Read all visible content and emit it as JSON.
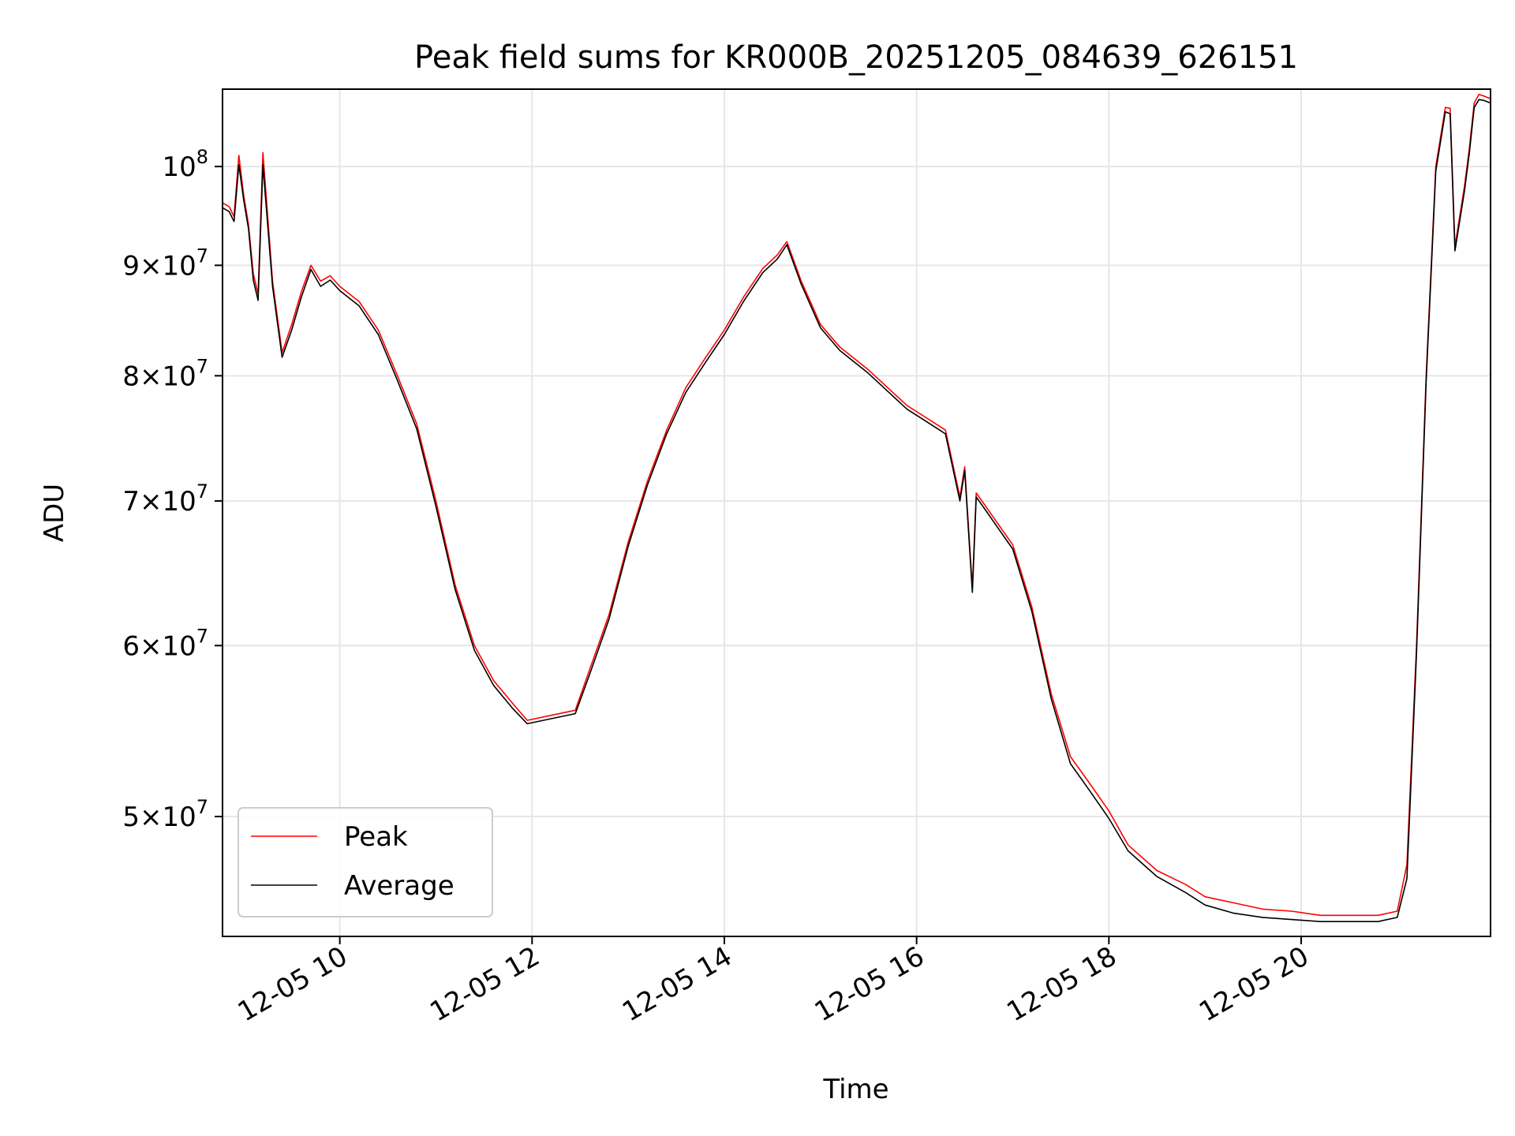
{
  "chart_data": {
    "type": "line",
    "title": "Peak field sums for KR000B_20251205_084639_626151",
    "xlabel": "Time",
    "ylabel": "ADU",
    "yscale": "log",
    "grid": true,
    "legend_position": "lower-left",
    "x_range_hours": [
      8.78,
      21.97
    ],
    "y_range": [
      44000000,
      108600000
    ],
    "x_ticks": [
      {
        "value": 10,
        "label": "12-05 10"
      },
      {
        "value": 12,
        "label": "12-05 12"
      },
      {
        "value": 14,
        "label": "12-05 14"
      },
      {
        "value": 16,
        "label": "12-05 16"
      },
      {
        "value": 18,
        "label": "12-05 18"
      },
      {
        "value": 20,
        "label": "12-05 20"
      }
    ],
    "y_ticks": [
      {
        "value": 50000000,
        "mantissa": "5",
        "exponent": "7"
      },
      {
        "value": 60000000,
        "mantissa": "6",
        "exponent": "7"
      },
      {
        "value": 70000000,
        "mantissa": "7",
        "exponent": "7"
      },
      {
        "value": 80000000,
        "mantissa": "8",
        "exponent": "7"
      },
      {
        "value": 90000000,
        "mantissa": "9",
        "exponent": "7"
      },
      {
        "value": 100000000,
        "mantissa": "",
        "exponent": "8"
      }
    ],
    "series": [
      {
        "name": "Peak",
        "color": "#ff0000",
        "x": [
          8.78,
          8.85,
          8.9,
          8.95,
          9.0,
          9.05,
          9.1,
          9.15,
          9.2,
          9.3,
          9.4,
          9.5,
          9.6,
          9.7,
          9.8,
          9.9,
          10.0,
          10.2,
          10.4,
          10.6,
          10.8,
          11.0,
          11.2,
          11.4,
          11.6,
          11.8,
          11.95,
          12.2,
          12.45,
          12.6,
          12.8,
          13.0,
          13.2,
          13.4,
          13.6,
          13.8,
          14.0,
          14.2,
          14.4,
          14.55,
          14.65,
          14.8,
          15.0,
          15.2,
          15.5,
          15.9,
          16.1,
          16.3,
          16.45,
          16.5,
          16.58,
          16.62,
          16.7,
          17.0,
          17.2,
          17.4,
          17.6,
          17.8,
          18.0,
          18.2,
          18.5,
          18.8,
          19.0,
          19.3,
          19.6,
          19.9,
          20.2,
          20.5,
          20.8,
          21.0,
          21.1,
          21.2,
          21.3,
          21.4,
          21.5,
          21.55,
          21.6,
          21.7,
          21.75,
          21.8,
          21.85,
          21.9,
          21.97
        ],
        "y": [
          96200000,
          95800000,
          94800000,
          101200000,
          97000000,
          94000000,
          89200000,
          87300000,
          101500000,
          88500000,
          82000000,
          84500000,
          87500000,
          90000000,
          88500000,
          89000000,
          88000000,
          86600000,
          84000000,
          80000000,
          76000000,
          70000000,
          64000000,
          60000000,
          57800000,
          56400000,
          55400000,
          55700000,
          56000000,
          58500000,
          62000000,
          67000000,
          71500000,
          75500000,
          79000000,
          81500000,
          84000000,
          87000000,
          89700000,
          91000000,
          92300000,
          88500000,
          84500000,
          82500000,
          80500000,
          77500000,
          76500000,
          75500000,
          70300000,
          72600000,
          63800000,
          70600000,
          69800000,
          66800000,
          62500000,
          57000000,
          53300000,
          51800000,
          50300000,
          48500000,
          47200000,
          46500000,
          45900000,
          45600000,
          45300000,
          45200000,
          45000000,
          45000000,
          45000000,
          45200000,
          47500000,
          60000000,
          80000000,
          100000000,
          106500000,
          106400000,
          91800000,
          98000000,
          102000000,
          107000000,
          108000000,
          107800000,
          107500000
        ]
      },
      {
        "name": "Average",
        "color": "#000000",
        "x": [
          8.78,
          8.85,
          8.9,
          8.95,
          9.0,
          9.05,
          9.1,
          9.15,
          9.2,
          9.3,
          9.4,
          9.5,
          9.6,
          9.7,
          9.8,
          9.9,
          10.0,
          10.2,
          10.4,
          10.6,
          10.8,
          11.0,
          11.2,
          11.4,
          11.6,
          11.8,
          11.95,
          12.2,
          12.45,
          12.6,
          12.8,
          13.0,
          13.2,
          13.4,
          13.6,
          13.8,
          14.0,
          14.2,
          14.4,
          14.55,
          14.65,
          14.8,
          15.0,
          15.2,
          15.5,
          15.9,
          16.1,
          16.3,
          16.45,
          16.5,
          16.58,
          16.62,
          16.7,
          17.0,
          17.2,
          17.4,
          17.6,
          17.8,
          18.0,
          18.2,
          18.5,
          18.8,
          19.0,
          19.3,
          19.6,
          19.9,
          20.2,
          20.5,
          20.8,
          21.0,
          21.1,
          21.2,
          21.3,
          21.4,
          21.5,
          21.55,
          21.6,
          21.7,
          21.75,
          21.8,
          21.85,
          21.9,
          21.97
        ],
        "y": [
          95700000,
          95300000,
          94300000,
          100200000,
          96500000,
          93600000,
          88600000,
          86700000,
          100200000,
          88000000,
          81600000,
          84000000,
          87000000,
          89600000,
          88000000,
          88600000,
          87600000,
          86200000,
          83600000,
          79600000,
          75600000,
          69600000,
          63700000,
          59700000,
          57500000,
          56100000,
          55200000,
          55500000,
          55800000,
          58200000,
          61700000,
          66700000,
          71200000,
          75200000,
          78600000,
          81100000,
          83600000,
          86600000,
          89300000,
          90600000,
          92000000,
          88200000,
          84200000,
          82200000,
          80200000,
          77200000,
          76200000,
          75200000,
          70000000,
          72300000,
          63500000,
          70300000,
          69500000,
          66500000,
          62200000,
          56700000,
          52900000,
          51400000,
          49900000,
          48200000,
          46900000,
          46100000,
          45500000,
          45100000,
          44900000,
          44800000,
          44700000,
          44700000,
          44700000,
          44900000,
          46800000,
          59500000,
          79500000,
          99500000,
          106000000,
          105800000,
          91400000,
          97500000,
          101500000,
          106500000,
          107400000,
          107300000,
          107000000
        ]
      }
    ]
  }
}
